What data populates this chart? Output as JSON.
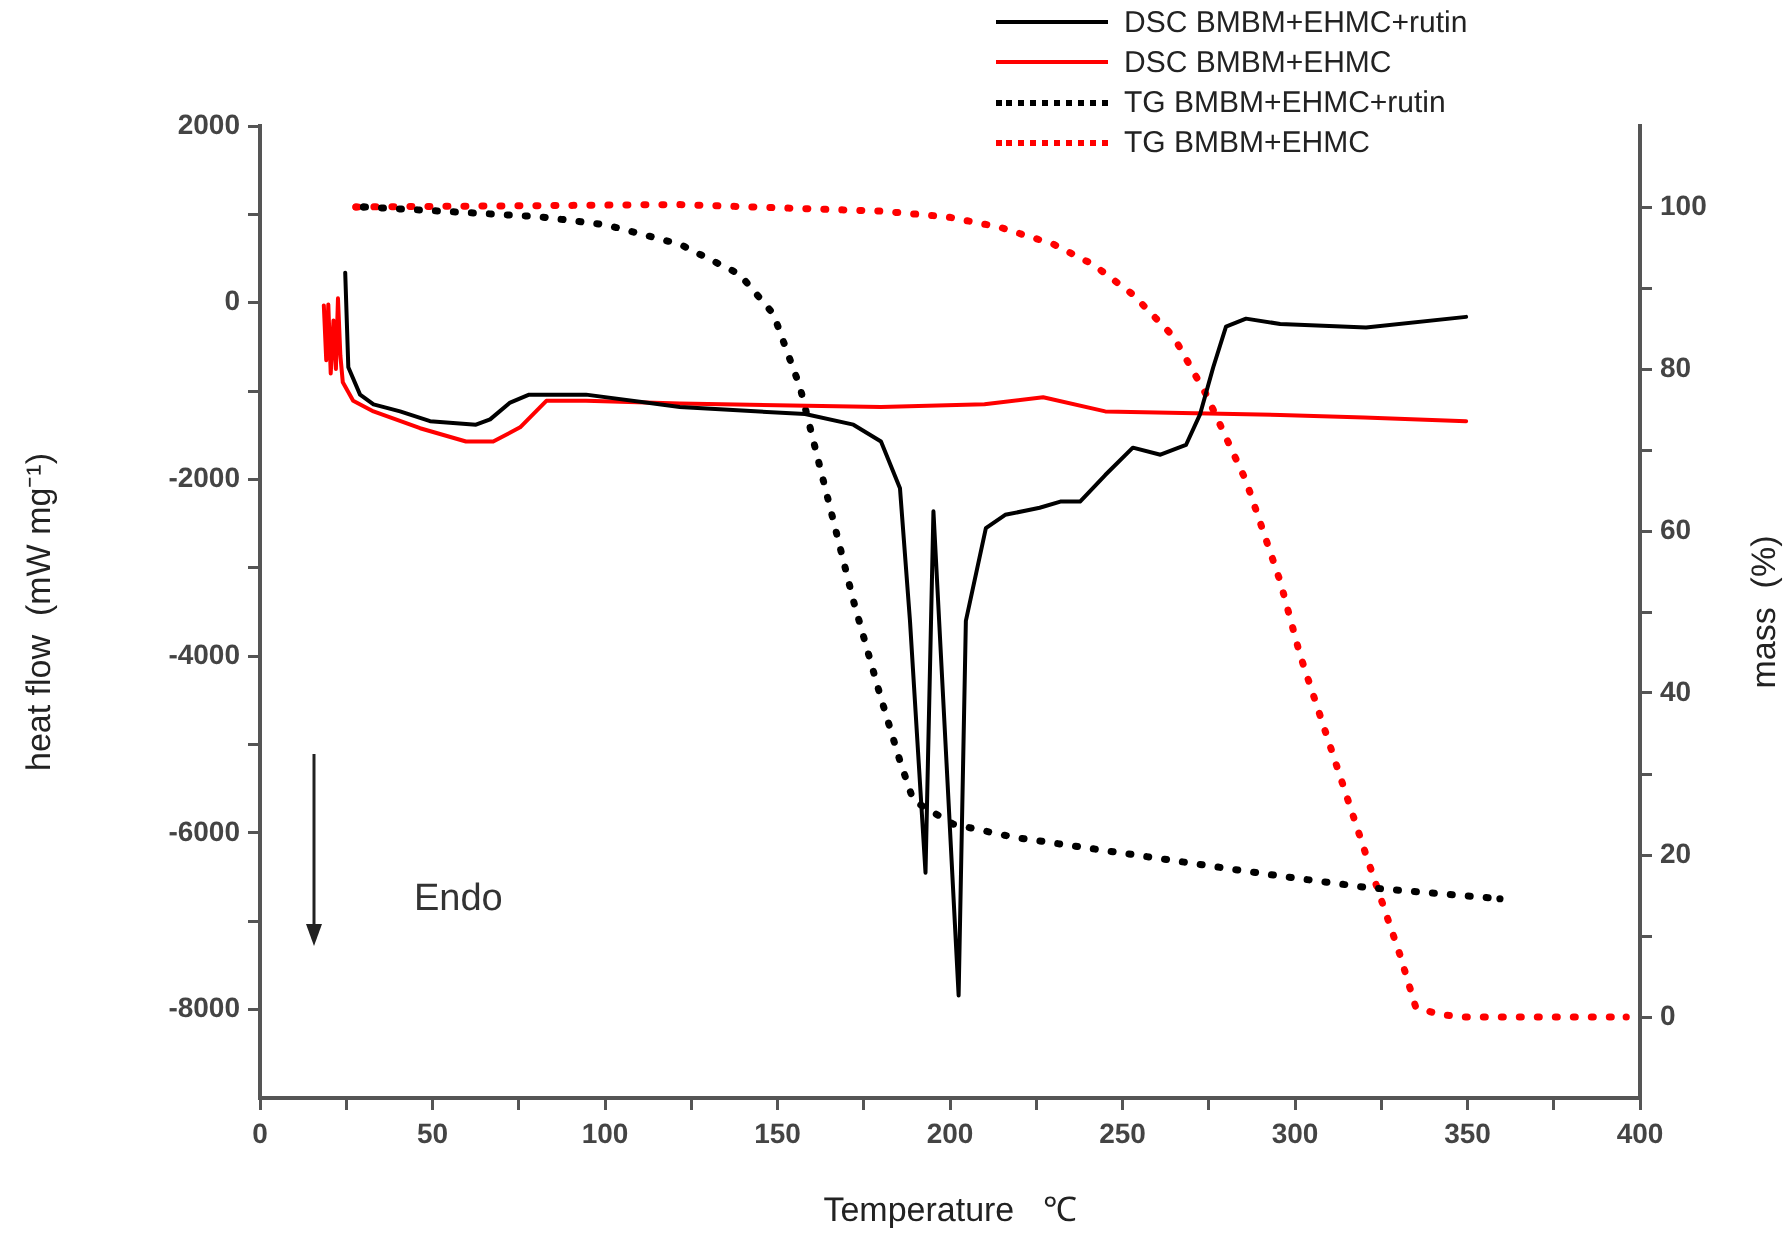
{
  "chart_data": {
    "type": "line",
    "xlabel": "Temperature   ℃",
    "ylabel": "heat flow  (mW mg⁻¹)",
    "y2label": "mass  (%)",
    "xlim": [
      0,
      400
    ],
    "xticks": [
      0,
      {
        "value": 25,
        "label": null
      },
      50,
      {
        "value": 75,
        "label": null
      },
      100,
      {
        "value": 125,
        "label": null
      },
      150,
      {
        "value": 175,
        "label": null
      },
      200,
      {
        "value": 225,
        "label": null
      },
      250,
      {
        "value": 275,
        "label": null
      },
      300,
      {
        "value": 325,
        "label": null
      },
      350,
      {
        "value": 375,
        "label": null
      },
      400
    ],
    "ylim": [
      -9000,
      2000
    ],
    "yticks": [
      2000,
      {
        "value": 1000,
        "label": null
      },
      0,
      {
        "value": -1000,
        "label": null
      },
      -2000,
      {
        "value": -3000,
        "label": null
      },
      -4000,
      {
        "value": -5000,
        "label": null
      },
      -6000,
      {
        "value": -7000,
        "label": null
      },
      -8000
    ],
    "y2lim": [
      -10,
      110
    ],
    "y2ticks": [
      0,
      {
        "value": 10,
        "label": null
      },
      20,
      {
        "value": 30,
        "label": null
      },
      40,
      {
        "value": 50,
        "label": null
      },
      60,
      {
        "value": 70,
        "label": null
      },
      80,
      {
        "value": 90,
        "label": null
      },
      100
    ],
    "grid": false,
    "legend": "top right",
    "marker": "none",
    "annotations": [
      "Endo"
    ],
    "series": [
      {
        "name": "DSC BMBM+EHMC+rutin",
        "color": "#000000",
        "line_style": "solid",
        "x": [
          24.7,
          25.6,
          29,
          32.9,
          40.6,
          49.3,
          62.6,
          66.7,
          72.5,
          78,
          94.5,
          121.7,
          158,
          172,
          180,
          185.5,
          188.4,
          192.9,
          195.2,
          202.5,
          204.6,
          210.4,
          216,
          226,
          232,
          237.7,
          245,
          253,
          261,
          268.4,
          272.5,
          276.3,
          280,
          285.8,
          295.7,
          320.6,
          349.6
        ],
        "values": [
          340,
          -730,
          -1040,
          -1150,
          -1230,
          -1340,
          -1380,
          -1320,
          -1130,
          -1040,
          -1040,
          -1180,
          -1260,
          -1380,
          -1570,
          -2100,
          -3600,
          -6450,
          -2360,
          -7840,
          -3600,
          -2550,
          -2400,
          -2320,
          -2250,
          -2250,
          -1950,
          -1640,
          -1720,
          -1610,
          -1260,
          -730,
          -270,
          -180,
          -240,
          -280,
          -160
        ]
      },
      {
        "name": "DSC BMBM+EHMC",
        "color": "#ff0000",
        "line_style": "solid",
        "x": [
          18.5,
          19.2,
          19.8,
          20.5,
          21.3,
          22,
          22.6,
          23.3,
          24,
          27,
          32.9,
          46.4,
          59.7,
          67.6,
          75.4,
          83,
          94.5,
          121.7,
          180,
          210,
          227,
          245,
          295.7,
          320,
          349.6
        ],
        "values": [
          -30,
          -650,
          -20,
          -800,
          -200,
          -750,
          50,
          -600,
          -900,
          -1110,
          -1230,
          -1420,
          -1570,
          -1570,
          -1410,
          -1110,
          -1110,
          -1140,
          -1180,
          -1150,
          -1070,
          -1230,
          -1270,
          -1300,
          -1340
        ]
      },
      {
        "name": "TG BMBM+EHMC+rutin",
        "color": "#000000",
        "line_style": "dotted",
        "axis": "y2",
        "x": [
          30,
          52,
          81,
          100.3,
          121.7,
          139,
          148.8,
          156.5,
          162.3,
          172,
          179.7,
          185.5,
          189.4,
          201,
          218.4,
          237.7,
          257,
          285.8,
          297.4,
          320.6,
          359.4
        ],
        "values": [
          100,
          99.5,
          98.8,
          97.8,
          95.4,
          91.7,
          86.8,
          77.8,
          67.9,
          51.4,
          39.8,
          31.6,
          26.7,
          23.8,
          22.2,
          21,
          19.8,
          18,
          17.3,
          16,
          14.6
        ]
      },
      {
        "name": "TG BMBM+EHMC",
        "color": "#ff0000",
        "line_style": "dotted",
        "axis": "y2",
        "x": [
          27.8,
          121.7,
          179.7,
          199,
          214.5,
          230,
          241.5,
          253,
          264.8,
          274.2,
          285.8,
          295.7,
          301.4,
          311,
          320.6,
          330.4,
          335,
          342,
          349,
          396
        ],
        "values": [
          100,
          100.3,
          99.5,
          98.8,
          97.5,
          95.4,
          92.9,
          89.2,
          84,
          76.9,
          66.2,
          53.8,
          44.8,
          32.4,
          20,
          7.7,
          1.2,
          0.3,
          0,
          0
        ]
      }
    ]
  }
}
